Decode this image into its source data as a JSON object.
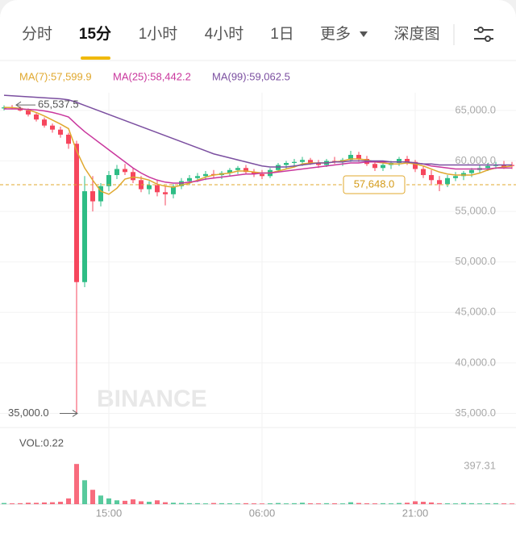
{
  "tabs": [
    "分时",
    "15分",
    "1小时",
    "4小时",
    "1日",
    "更多",
    "深度图"
  ],
  "chart_data": {
    "type": "candlestick",
    "watermark": "BINANCE",
    "categories": [
      null,
      null,
      null,
      null,
      null,
      null,
      null,
      null,
      null,
      null,
      null,
      null,
      null,
      "15:00",
      null,
      null,
      null,
      null,
      null,
      null,
      null,
      null,
      null,
      null,
      null,
      null,
      null,
      null,
      null,
      null,
      null,
      null,
      "06:00",
      null,
      null,
      null,
      null,
      null,
      null,
      null,
      null,
      null,
      null,
      null,
      null,
      null,
      null,
      null,
      null,
      null,
      null,
      "21:00",
      null,
      null,
      null,
      null,
      null,
      null,
      null,
      null,
      null,
      null,
      null,
      null
    ],
    "ohlc": [
      [
        65200,
        65500,
        65000,
        65300
      ],
      [
        65300,
        65537.5,
        65100,
        65250
      ],
      [
        65250,
        65400,
        64900,
        65000
      ],
      [
        65000,
        65200,
        64400,
        64600
      ],
      [
        64600,
        64800,
        63900,
        64100
      ],
      [
        64100,
        64300,
        63300,
        63500
      ],
      [
        63500,
        63700,
        62800,
        63100
      ],
      [
        63100,
        63400,
        62300,
        62600
      ],
      [
        62600,
        62800,
        61200,
        61700
      ],
      [
        61700,
        62000,
        35000,
        48000
      ],
      [
        48000,
        58500,
        47500,
        57000
      ],
      [
        57000,
        58500,
        55000,
        56000
      ],
      [
        56000,
        57800,
        55500,
        57500
      ],
      [
        57500,
        59000,
        57000,
        58600
      ],
      [
        58600,
        59600,
        58200,
        59200
      ],
      [
        59200,
        59700,
        58600,
        58900
      ],
      [
        58900,
        59300,
        57800,
        58100
      ],
      [
        58100,
        58500,
        56900,
        57200
      ],
      [
        57200,
        58000,
        56700,
        57600
      ],
      [
        57600,
        58100,
        56500,
        56900
      ],
      [
        56900,
        57500,
        55600,
        56700
      ],
      [
        56700,
        57700,
        56300,
        57500
      ],
      [
        57500,
        58300,
        57200,
        58000
      ],
      [
        58000,
        58600,
        57600,
        58300
      ],
      [
        58300,
        58800,
        57900,
        58500
      ],
      [
        58500,
        59000,
        58100,
        58700
      ],
      [
        58700,
        59100,
        58300,
        58600
      ],
      [
        58600,
        59000,
        58200,
        58800
      ],
      [
        58800,
        59300,
        58500,
        59100
      ],
      [
        59100,
        59500,
        58700,
        59300
      ],
      [
        59300,
        59600,
        58700,
        58900
      ],
      [
        58900,
        59200,
        58400,
        58700
      ],
      [
        58700,
        59100,
        58200,
        58500
      ],
      [
        58500,
        59300,
        58300,
        59100
      ],
      [
        59100,
        59800,
        58900,
        59600
      ],
      [
        59600,
        60000,
        59200,
        59800
      ],
      [
        59800,
        60200,
        59400,
        59900
      ],
      [
        59900,
        60400,
        59500,
        60100
      ],
      [
        60100,
        60300,
        59600,
        59800
      ],
      [
        59800,
        60100,
        59300,
        59600
      ],
      [
        59600,
        60200,
        59400,
        60000
      ],
      [
        60000,
        60400,
        59700,
        59900
      ],
      [
        59900,
        60300,
        59500,
        60100
      ],
      [
        60100,
        61000,
        59900,
        60600
      ],
      [
        60600,
        60900,
        59900,
        60200
      ],
      [
        60200,
        60500,
        59500,
        59700
      ],
      [
        59700,
        60000,
        59000,
        59300
      ],
      [
        59300,
        59800,
        59000,
        59600
      ],
      [
        59600,
        60000,
        59200,
        59800
      ],
      [
        59800,
        60400,
        59500,
        60200
      ],
      [
        60200,
        60500,
        59600,
        59900
      ],
      [
        59900,
        60100,
        58900,
        59200
      ],
      [
        59200,
        59500,
        58300,
        58600
      ],
      [
        58600,
        59100,
        57700,
        58100
      ],
      [
        58100,
        58500,
        57000,
        57700
      ],
      [
        57700,
        58600,
        57400,
        58300
      ],
      [
        58300,
        58900,
        58000,
        58500
      ],
      [
        58500,
        59000,
        58100,
        58800
      ],
      [
        58800,
        59300,
        58400,
        59100
      ],
      [
        59100,
        59600,
        58800,
        59300
      ],
      [
        59300,
        59800,
        59000,
        59500
      ],
      [
        59500,
        59900,
        59200,
        59600
      ],
      [
        59600,
        60000,
        59200,
        59400
      ],
      [
        59600,
        59900,
        59200,
        59500
      ]
    ],
    "up_color": "#2ebd85",
    "down_color": "#f6465d",
    "series": [
      {
        "name": "MA(7):57,599.9",
        "color": "#e0a82e",
        "values": [
          65300,
          65280,
          65200,
          65050,
          64800,
          64450,
          64050,
          63650,
          63200,
          61000,
          59300,
          58100,
          57000,
          56700,
          57300,
          58200,
          58400,
          58300,
          58100,
          57700,
          57500,
          57400,
          57600,
          57800,
          58100,
          58400,
          58600,
          58700,
          58800,
          59000,
          59000,
          58900,
          58800,
          58800,
          59000,
          59200,
          59400,
          59700,
          59800,
          59800,
          59800,
          59900,
          60000,
          60200,
          60200,
          60100,
          59900,
          59800,
          59700,
          59700,
          59800,
          59700,
          59500,
          59200,
          58900,
          58700,
          58600,
          58600,
          58600,
          58800,
          59100,
          59300,
          59400,
          59500
        ]
      },
      {
        "name": "MA(25):58,442.2",
        "color": "#c9379d",
        "values": [
          65150,
          65150,
          65140,
          65100,
          65050,
          64950,
          64800,
          64600,
          64350,
          63600,
          62900,
          62300,
          61700,
          61100,
          60500,
          59900,
          59300,
          58800,
          58400,
          58100,
          57900,
          57800,
          57800,
          57900,
          58000,
          58200,
          58300,
          58400,
          58500,
          58600,
          58700,
          58700,
          58800,
          58800,
          58900,
          59000,
          59100,
          59200,
          59300,
          59400,
          59500,
          59600,
          59700,
          59800,
          59800,
          59900,
          59900,
          59900,
          59900,
          59900,
          59900,
          59800,
          59700,
          59500,
          59400,
          59300,
          59200,
          59200,
          59200,
          59200,
          59200,
          59300,
          59300,
          59300
        ]
      },
      {
        "name": "MA(99):59,062.5",
        "color": "#7b4fa0",
        "values": [
          66500,
          66450,
          66400,
          66350,
          66300,
          66250,
          66200,
          66150,
          66050,
          65800,
          65500,
          65200,
          64900,
          64600,
          64300,
          64000,
          63700,
          63400,
          63100,
          62800,
          62500,
          62200,
          61900,
          61600,
          61300,
          61000,
          60700,
          60500,
          60300,
          60100,
          59900,
          59700,
          59500,
          59400,
          59400,
          59400,
          59500,
          59600,
          59700,
          59800,
          59800,
          59900,
          59900,
          60000,
          60000,
          60000,
          60000,
          60000,
          59900,
          59900,
          59900,
          59800,
          59700,
          59700,
          59600,
          59600,
          59600,
          59600,
          59600,
          59600,
          59600,
          59600,
          59600,
          59600
        ]
      }
    ],
    "ylim": [
      33600,
      66750
    ],
    "yticks": [
      {
        "value": 35000,
        "label": "35,000.0"
      },
      {
        "value": 40000,
        "label": "40,000.0"
      },
      {
        "value": 45000,
        "label": "45,000.0"
      },
      {
        "value": 50000,
        "label": "50,000.0"
      },
      {
        "value": 55000,
        "label": "55,000.0"
      },
      {
        "value": 60000,
        "label": "60,000.0"
      },
      {
        "value": 65000,
        "label": "65,000.0"
      }
    ],
    "grid": true,
    "high_mark": {
      "value": 65537.5,
      "label": "65,537.5"
    },
    "low_mark": {
      "value": 35000,
      "label": "35,000.0"
    },
    "last_price": {
      "value": 57648,
      "label": "57,648.0"
    },
    "volume_label": "VOL:0.22",
    "volumes": [
      12,
      8,
      10,
      15,
      14,
      18,
      20,
      25,
      60,
      420,
      250,
      150,
      90,
      60,
      40,
      35,
      50,
      30,
      25,
      40,
      20,
      15,
      12,
      10,
      10,
      8,
      12,
      10,
      9,
      8,
      10,
      8,
      7,
      9,
      12,
      8,
      10,
      15,
      9,
      8,
      10,
      9,
      8,
      20,
      12,
      9,
      8,
      10,
      8,
      12,
      15,
      30,
      25,
      18,
      10,
      9,
      8,
      12,
      10,
      8,
      9,
      10,
      8,
      7
    ],
    "vol_ylim": [
      0,
      430
    ],
    "vol_yticks": [
      397.31
    ]
  }
}
